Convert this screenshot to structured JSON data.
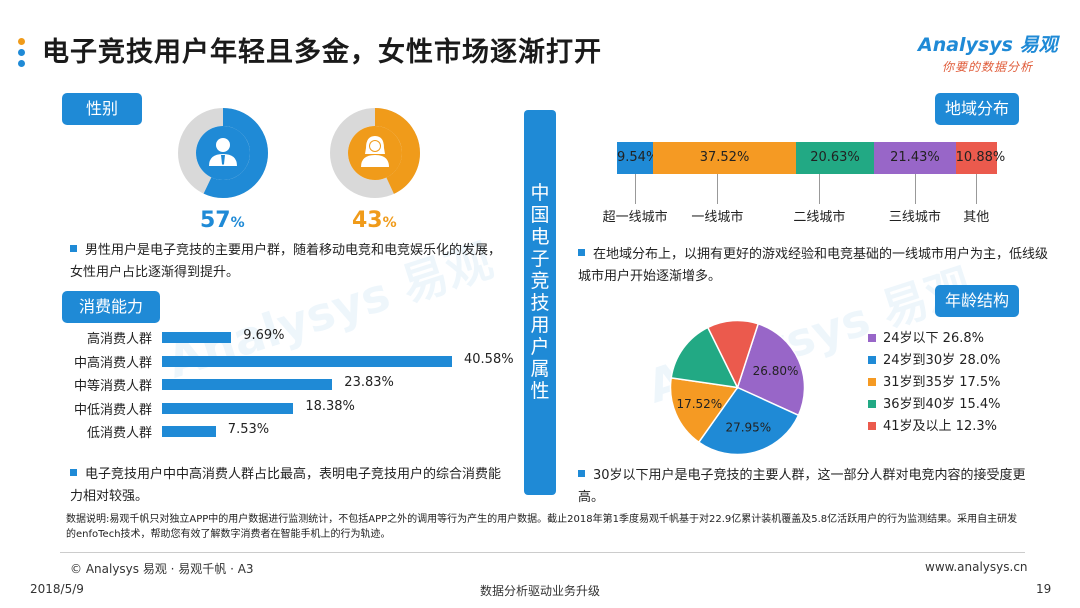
{
  "title": "电子竞技用户年轻且多金，女性市场逐渐打开",
  "logo": {
    "brand": "Analysys 易观",
    "slogan": "你要的数据分析"
  },
  "watermark": "Analysys 易观",
  "sections": {
    "gender": "性别",
    "consumption": "消费能力",
    "region": "地域分布",
    "age": "年龄结构"
  },
  "center_label": [
    "中",
    "国",
    "电",
    "子",
    "竞",
    "技",
    "用",
    "户",
    "属",
    "性"
  ],
  "gender": {
    "male_pct": "57",
    "female_pct": "43",
    "pct_sign": "%",
    "male_icon": "male-user-icon",
    "female_icon": "female-user-icon",
    "note": "男性用户是电子竞技的主要用户群，随着移动电竞和电竞娱乐化的发展，女性用户占比逐渐得到提升。"
  },
  "consumption_note": "电子竞技用户中中高消费人群占比最高，表明电子竞技用户的综合消费能力相对较强。",
  "region_note": "在地域分布上，以拥有更好的游戏经验和电竞基础的一线城市用户为主，低线级城市用户开始逐渐增多。",
  "age_note": "30岁以下用户是电子竞技的主要人群，这一部分人群对电竞内容的接受度更高。",
  "data_note": "数据说明:易观千帆只对独立APP中的用户数据进行监测统计，不包括APP之外的调用等行为产生的用户数据。截止2018年第1季度易观千帆基于对22.9亿累计装机覆盖及5.8亿活跃用户的行为监测结果。采用自主研发的enfoTech技术，帮助您有效了解数字消费者在智能手机上的行为轨迹。",
  "footer": {
    "copyright": "© Analysys 易观 · 易观千帆 · A3",
    "website": "www.analysys.cn",
    "date": "2018/5/9",
    "slogan": "数据分析驱动业务升级",
    "page": "19"
  },
  "colors": {
    "accent": "#1f8ad6",
    "male": "#1f8ad6",
    "female": "#f09b1a",
    "ring_bg": "#d9d9d9"
  },
  "chart_data": [
    {
      "type": "pie",
      "name": "gender",
      "categories": [
        "男",
        "女"
      ],
      "values": [
        57,
        43
      ]
    },
    {
      "type": "bar",
      "orientation": "horizontal",
      "categories": [
        "高消费人群",
        "中高消费人群",
        "中等消费人群",
        "中低消费人群",
        "低消费人群"
      ],
      "values": [
        9.69,
        40.58,
        23.83,
        18.38,
        7.53
      ],
      "labels": [
        "9.69%",
        "40.58%",
        "23.83%",
        "18.38%",
        "7.53%"
      ],
      "xlim": [
        0,
        40.58
      ]
    },
    {
      "type": "bar",
      "orientation": "stacked-horizontal",
      "categories": [
        "超一线城市",
        "一线城市",
        "二线城市",
        "三线城市",
        "其他"
      ],
      "values": [
        9.54,
        37.52,
        20.63,
        21.43,
        10.88
      ],
      "labels": [
        "9.54%",
        "37.52%",
        "20.63%",
        "21.43%",
        "10.88%"
      ],
      "colors": [
        "#1f8ad6",
        "#f59a23",
        "#22a984",
        "#9866c8",
        "#eb5a4d"
      ]
    },
    {
      "type": "pie",
      "categories": [
        "24岁以下",
        "24岁到30岁",
        "31岁到35岁",
        "36岁到40岁",
        "41岁及以上"
      ],
      "values": [
        26.8,
        28.0,
        17.5,
        15.4,
        12.3
      ],
      "legend": [
        "24岁以下 26.8%",
        "24岁到30岁 28.0%",
        "31岁到35岁 17.5%",
        "36岁到40岁 15.4%",
        "41岁及以上 12.3%"
      ],
      "slice_labels": [
        "26.80%",
        "27.95%",
        "17.52%",
        "",
        ""
      ],
      "colors": [
        "#9866c8",
        "#1f8ad6",
        "#f59a23",
        "#22a984",
        "#eb5a4d"
      ],
      "legend_position": "right"
    }
  ]
}
